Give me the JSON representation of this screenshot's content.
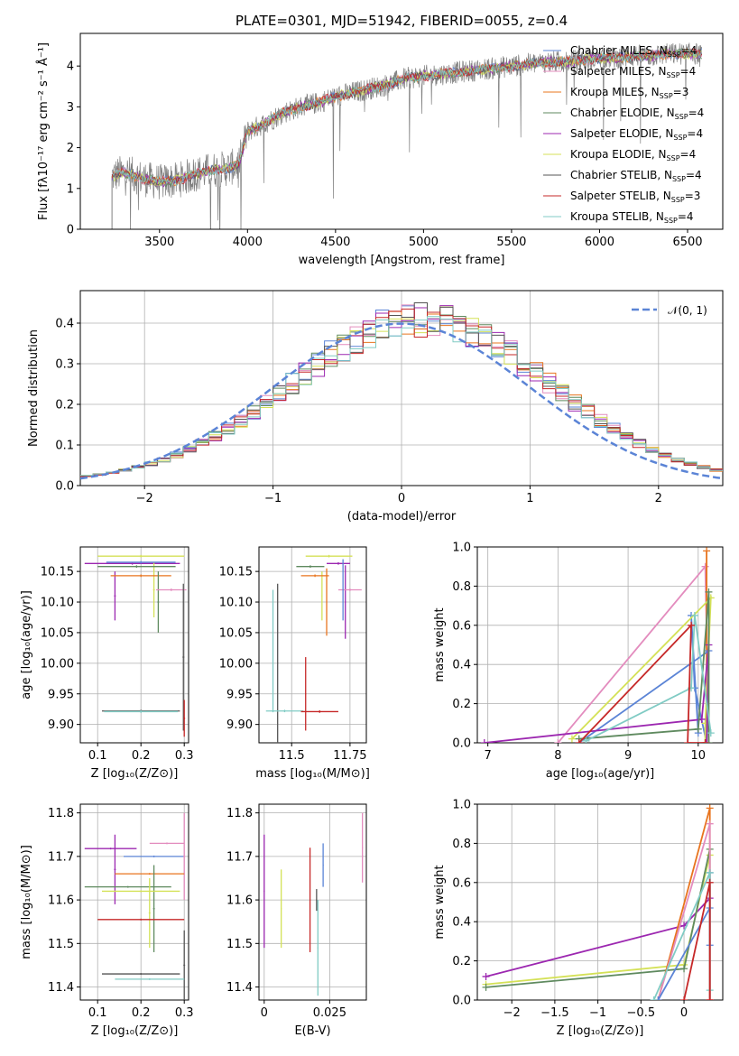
{
  "chart_data": [
    {
      "type": "line",
      "id": "spectrum",
      "title": "PLATE=0301, MJD=51942, FIBERID=0055, z=0.4",
      "xlabel": "wavelength [Angstrom, rest frame]",
      "ylabel": "Flux [fλ10⁻¹⁷ erg cm⁻² s⁻¹ Å⁻¹]",
      "xlim": [
        3050,
        6700
      ],
      "ylim": [
        0,
        4.8
      ],
      "xticks": [
        3500,
        4000,
        4500,
        5000,
        5500,
        6000,
        6500
      ],
      "yticks": [
        0,
        1,
        2,
        3,
        4
      ],
      "legend_position": "upper-right",
      "data_color": "#808080",
      "continuum": {
        "x": [
          3230,
          3300,
          3400,
          3500,
          3600,
          3700,
          3800,
          3900,
          3950,
          4000,
          4100,
          4200,
          4300,
          4400,
          4500,
          4600,
          4700,
          4800,
          4900,
          5000,
          5100,
          5200,
          5300,
          5400,
          5500,
          5600,
          5700,
          5800,
          5900,
          6000,
          6100,
          6200,
          6300,
          6400,
          6500,
          6580
        ],
        "y": [
          1.3,
          1.4,
          1.25,
          1.15,
          1.2,
          1.35,
          1.45,
          1.5,
          1.6,
          2.4,
          2.6,
          2.85,
          3.0,
          3.1,
          3.25,
          3.35,
          3.45,
          3.55,
          3.7,
          3.75,
          3.8,
          3.85,
          3.9,
          3.95,
          4.0,
          4.05,
          4.1,
          4.1,
          4.15,
          4.2,
          4.2,
          4.25,
          4.25,
          4.3,
          4.3,
          4.3
        ]
      },
      "legend": [
        {
          "label": "Chabrier MILES, N",
          "sub": "SSP",
          "suffix": "=4",
          "color": "#5b84d6"
        },
        {
          "label": "Salpeter MILES, N",
          "sub": "SSP",
          "suffix": "=4",
          "color": "#e38cbe"
        },
        {
          "label": "Kroupa MILES, N",
          "sub": "SSP",
          "suffix": "=3",
          "color": "#e8741e"
        },
        {
          "label": "Chabrier ELODIE, N",
          "sub": "SSP",
          "suffix": "=4",
          "color": "#5f8a5f"
        },
        {
          "label": "Salpeter ELODIE, N",
          "sub": "SSP",
          "suffix": "=4",
          "color": "#9c27b0"
        },
        {
          "label": "Kroupa ELODIE, N",
          "sub": "SSP",
          "suffix": "=4",
          "color": "#d4e157"
        },
        {
          "label": "Chabrier STELIB, N",
          "sub": "SSP",
          "suffix": "=4",
          "color": "#555555"
        },
        {
          "label": "Salpeter STELIB, N",
          "sub": "SSP",
          "suffix": "=3",
          "color": "#c62828"
        },
        {
          "label": "Kroupa STELIB, N",
          "sub": "SSP",
          "suffix": "=4",
          "color": "#80cbc4"
        }
      ]
    },
    {
      "type": "histogram",
      "id": "residuals",
      "xlabel": "(data-model)/error",
      "ylabel": "Normed distribution",
      "xlim": [
        -2.5,
        2.5
      ],
      "ylim": [
        0,
        0.48
      ],
      "xticks": [
        -2,
        -1,
        0,
        1,
        2
      ],
      "yticks": [
        0.0,
        0.1,
        0.2,
        0.3,
        0.4
      ],
      "grid": true,
      "legend_position": "upper-right",
      "normal_curve": {
        "label": "𝒩(0, 1)",
        "color": "#5b84d6"
      },
      "bin_edges_start": -2.5,
      "bin_width": 0.1,
      "series_colors": [
        "#5b84d6",
        "#e38cbe",
        "#e8741e",
        "#5f8a5f",
        "#9c27b0",
        "#d4e157",
        "#555555",
        "#c62828",
        "#80cbc4"
      ]
    },
    {
      "type": "scatter",
      "id": "age-vs-Z",
      "xlabel": "Z [log₁₀(Z/Z⊙)]",
      "ylabel": "age  [log₁₀(age/yr)]",
      "xlim": [
        0.06,
        0.31
      ],
      "ylim": [
        9.87,
        10.19
      ],
      "xticks": [
        0.1,
        0.2,
        0.3
      ],
      "yticks": [
        9.9,
        9.95,
        10.0,
        10.05,
        10.1,
        10.15
      ],
      "points": [
        {
          "x": 0.18,
          "y": 10.163,
          "xerr": 0.11,
          "yerr": 0.002,
          "color": "#9c27b0"
        },
        {
          "x": 0.14,
          "y": 10.11,
          "xerr": 0.002,
          "yerr": 0.04,
          "color": "#9c27b0"
        },
        {
          "x": 0.2,
          "y": 10.175,
          "xerr": 0.1,
          "yerr": 0.002,
          "color": "#d4e157"
        },
        {
          "x": 0.23,
          "y": 10.12,
          "xerr": 0.002,
          "yerr": 0.045,
          "color": "#d4e157"
        },
        {
          "x": 0.2,
          "y": 10.143,
          "xerr": 0.07,
          "yerr": 0.002,
          "color": "#e8741e"
        },
        {
          "x": 0.19,
          "y": 10.158,
          "xerr": 0.09,
          "yerr": 0.002,
          "color": "#5f8a5f"
        },
        {
          "x": 0.24,
          "y": 10.1,
          "xerr": 0.002,
          "yerr": 0.05,
          "color": "#5f8a5f"
        },
        {
          "x": 0.27,
          "y": 10.12,
          "xerr": 0.035,
          "yerr": 0.002,
          "color": "#e38cbe"
        },
        {
          "x": 0.2,
          "y": 10.165,
          "xerr": 0.08,
          "yerr": 0.002,
          "color": "#5b84d6"
        },
        {
          "x": 0.298,
          "y": 10.01,
          "xerr": 0.002,
          "yerr": 0.12,
          "color": "#555555"
        },
        {
          "x": 0.2,
          "y": 9.922,
          "xerr": 0.09,
          "yerr": 0.002,
          "color": "#555555"
        },
        {
          "x": 0.2,
          "y": 9.921,
          "xerr": 0.085,
          "yerr": 0.002,
          "color": "#80cbc4"
        },
        {
          "x": 0.3,
          "y": 9.91,
          "xerr": 0.002,
          "yerr": 0.03,
          "color": "#c62828"
        }
      ]
    },
    {
      "type": "scatter",
      "id": "age-vs-mass",
      "xlabel": "mass [log₁₀(M/M⊙)]",
      "xlim": [
        11.36,
        11.82
      ],
      "ylim": [
        9.87,
        10.19
      ],
      "xticks": [
        11.5,
        11.75
      ],
      "yticks": [
        9.9,
        9.95,
        10.0,
        10.05,
        10.1,
        10.15
      ],
      "points": [
        {
          "x": 11.66,
          "y": 10.175,
          "xerr": 0.1,
          "yerr": 0.002,
          "color": "#d4e157"
        },
        {
          "x": 11.63,
          "y": 10.11,
          "xerr": 0.002,
          "yerr": 0.04,
          "color": "#d4e157"
        },
        {
          "x": 11.6,
          "y": 10.143,
          "xerr": 0.06,
          "yerr": 0.002,
          "color": "#e8741e"
        },
        {
          "x": 11.65,
          "y": 10.1,
          "xerr": 0.002,
          "yerr": 0.055,
          "color": "#e8741e"
        },
        {
          "x": 11.58,
          "y": 10.158,
          "xerr": 0.06,
          "yerr": 0.002,
          "color": "#5f8a5f"
        },
        {
          "x": 11.7,
          "y": 10.163,
          "xerr": 0.05,
          "yerr": 0.002,
          "color": "#9c27b0"
        },
        {
          "x": 11.73,
          "y": 10.1,
          "xerr": 0.002,
          "yerr": 0.06,
          "color": "#9c27b0"
        },
        {
          "x": 11.75,
          "y": 10.12,
          "xerr": 0.05,
          "yerr": 0.002,
          "color": "#e38cbe"
        },
        {
          "x": 11.72,
          "y": 10.12,
          "xerr": 0.002,
          "yerr": 0.05,
          "color": "#5b84d6"
        },
        {
          "x": 11.42,
          "y": 10.02,
          "xerr": 0.002,
          "yerr": 0.1,
          "color": "#80cbc4"
        },
        {
          "x": 11.44,
          "y": 10.0,
          "xerr": 0.002,
          "yerr": 0.13,
          "color": "#555555"
        },
        {
          "x": 11.47,
          "y": 9.922,
          "xerr": 0.08,
          "yerr": 0.002,
          "color": "#80cbc4"
        },
        {
          "x": 11.62,
          "y": 9.921,
          "xerr": 0.08,
          "yerr": 0.002,
          "color": "#c62828"
        },
        {
          "x": 11.56,
          "y": 9.95,
          "xerr": 0.002,
          "yerr": 0.06,
          "color": "#c62828"
        }
      ]
    },
    {
      "type": "line",
      "id": "weight-vs-age",
      "xlabel": "age  [log₁₀(age/yr)]",
      "ylabel": "mass weight",
      "xlim": [
        6.85,
        10.35
      ],
      "ylim": [
        0,
        1.0
      ],
      "xticks": [
        7,
        8,
        9,
        10
      ],
      "yticks": [
        0.0,
        0.2,
        0.4,
        0.6,
        0.8,
        1.0
      ],
      "grid": true,
      "series": [
        {
          "color": "#e38cbe",
          "x": [
            8.0,
            10.1,
            10.15
          ],
          "y": [
            0.0,
            0.9,
            0.0
          ]
        },
        {
          "color": "#e8741e",
          "x": [
            10.12,
            10.12,
            10.12
          ],
          "y": [
            0.0,
            0.98,
            0.0
          ]
        },
        {
          "color": "#5b84d6",
          "x": [
            8.3,
            10.15,
            10.12,
            9.95,
            9.9,
            10.0
          ],
          "y": [
            0.0,
            0.47,
            0.0,
            0.28,
            0.65,
            0.05
          ]
        },
        {
          "color": "#d4e157",
          "x": [
            8.2,
            10.18,
            10.1,
            10.1
          ],
          "y": [
            0.02,
            0.74,
            0.1,
            0.0
          ]
        },
        {
          "color": "#9c27b0",
          "x": [
            6.95,
            10.05,
            10.15,
            10.12
          ],
          "y": [
            0.0,
            0.12,
            0.5,
            0.0
          ]
        },
        {
          "color": "#5f8a5f",
          "x": [
            8.3,
            10.0,
            10.15,
            10.15
          ],
          "y": [
            0.02,
            0.07,
            0.77,
            0.0
          ]
        },
        {
          "color": "#80cbc4",
          "x": [
            8.4,
            9.9,
            9.95,
            10.18
          ],
          "y": [
            0.01,
            0.28,
            0.65,
            0.05
          ]
        },
        {
          "color": "#c62828",
          "x": [
            8.3,
            9.9,
            9.85,
            10.1
          ],
          "y": [
            0.0,
            0.6,
            0.0,
            0.0
          ]
        }
      ]
    },
    {
      "type": "scatter",
      "id": "mass-vs-Z",
      "xlabel": "Z [log₁₀(Z/Z⊙)]",
      "ylabel": "mass [log₁₀(M/M⊙)]",
      "xlim": [
        0.06,
        0.31
      ],
      "ylim": [
        11.37,
        11.82
      ],
      "xticks": [
        0.1,
        0.2,
        0.3
      ],
      "yticks": [
        11.4,
        11.5,
        11.6,
        11.7,
        11.8
      ],
      "points": [
        {
          "x": 0.13,
          "y": 11.718,
          "xerr": 0.06,
          "yerr": 0.002,
          "color": "#9c27b0"
        },
        {
          "x": 0.14,
          "y": 11.67,
          "xerr": 0.002,
          "yerr": 0.08,
          "color": "#9c27b0"
        },
        {
          "x": 0.23,
          "y": 11.7,
          "xerr": 0.07,
          "yerr": 0.002,
          "color": "#5b84d6"
        },
        {
          "x": 0.26,
          "y": 11.73,
          "xerr": 0.04,
          "yerr": 0.002,
          "color": "#e38cbe"
        },
        {
          "x": 0.3,
          "y": 11.7,
          "xerr": 0.002,
          "yerr": 0.1,
          "color": "#e38cbe"
        },
        {
          "x": 0.22,
          "y": 11.66,
          "xerr": 0.08,
          "yerr": 0.002,
          "color": "#e8741e"
        },
        {
          "x": 0.17,
          "y": 11.63,
          "xerr": 0.1,
          "yerr": 0.002,
          "color": "#5f8a5f"
        },
        {
          "x": 0.23,
          "y": 11.58,
          "xerr": 0.002,
          "yerr": 0.1,
          "color": "#5f8a5f"
        },
        {
          "x": 0.2,
          "y": 11.62,
          "xerr": 0.09,
          "yerr": 0.002,
          "color": "#d4e157"
        },
        {
          "x": 0.22,
          "y": 11.57,
          "xerr": 0.002,
          "yerr": 0.08,
          "color": "#d4e157"
        },
        {
          "x": 0.2,
          "y": 11.555,
          "xerr": 0.1,
          "yerr": 0.002,
          "color": "#c62828"
        },
        {
          "x": 0.2,
          "y": 11.43,
          "xerr": 0.09,
          "yerr": 0.002,
          "color": "#555555"
        },
        {
          "x": 0.3,
          "y": 11.45,
          "xerr": 0.002,
          "yerr": 0.08,
          "color": "#555555"
        },
        {
          "x": 0.22,
          "y": 11.418,
          "xerr": 0.08,
          "yerr": 0.002,
          "color": "#80cbc4"
        }
      ]
    },
    {
      "type": "scatter",
      "id": "mass-vs-EBV",
      "xlabel": "E(B-V)",
      "xlim": [
        -0.002,
        0.039
      ],
      "ylim": [
        11.37,
        11.82
      ],
      "xticks": [
        0.0,
        0.025
      ],
      "yticks": [
        11.4,
        11.5,
        11.6,
        11.7,
        11.8
      ],
      "points": [
        {
          "x": 0.0,
          "y": 11.62,
          "xerr": 0.0002,
          "yerr": 0.13,
          "color": "#9c27b0"
        },
        {
          "x": 0.0065,
          "y": 11.58,
          "xerr": 0.0002,
          "yerr": 0.09,
          "color": "#d4e157"
        },
        {
          "x": 0.0175,
          "y": 11.6,
          "xerr": 0.0002,
          "yerr": 0.12,
          "color": "#c62828"
        },
        {
          "x": 0.02,
          "y": 11.6,
          "xerr": 0.0002,
          "yerr": 0.025,
          "color": "#555555"
        },
        {
          "x": 0.0205,
          "y": 11.49,
          "xerr": 0.0002,
          "yerr": 0.11,
          "color": "#80cbc4"
        },
        {
          "x": 0.0225,
          "y": 11.68,
          "xerr": 0.0002,
          "yerr": 0.05,
          "color": "#5b84d6"
        },
        {
          "x": 0.0375,
          "y": 11.72,
          "xerr": 0.0002,
          "yerr": 0.08,
          "color": "#e38cbe"
        }
      ]
    },
    {
      "type": "line",
      "id": "weight-vs-Z",
      "xlabel": "Z [log₁₀(Z/Z⊙)]",
      "ylabel": "mass weight",
      "xlim": [
        -2.4,
        0.45
      ],
      "ylim": [
        0,
        1.0
      ],
      "xticks": [
        -2.0,
        -1.5,
        -1.0,
        -0.5,
        0.0
      ],
      "yticks": [
        0.0,
        0.2,
        0.4,
        0.6,
        0.8,
        1.0
      ],
      "grid": true,
      "series": [
        {
          "color": "#9c27b0",
          "x": [
            -2.3,
            0.0,
            0.3,
            0.3
          ],
          "y": [
            0.12,
            0.38,
            0.52,
            0.0
          ]
        },
        {
          "color": "#d4e157",
          "x": [
            -2.3,
            0.0,
            0.3
          ],
          "y": [
            0.08,
            0.18,
            0.74
          ]
        },
        {
          "color": "#5f8a5f",
          "x": [
            -2.3,
            0.0,
            0.3,
            0.3
          ],
          "y": [
            0.065,
            0.16,
            0.77,
            0.0
          ]
        },
        {
          "color": "#e8741e",
          "x": [
            -0.3,
            0.3,
            0.3
          ],
          "y": [
            0.0,
            0.98,
            0.0
          ]
        },
        {
          "color": "#e38cbe",
          "x": [
            -0.3,
            0.3,
            0.3
          ],
          "y": [
            0.0,
            0.9,
            0.0
          ]
        },
        {
          "color": "#5b84d6",
          "x": [
            -0.3,
            0.3,
            0.3,
            0.3
          ],
          "y": [
            0.0,
            0.47,
            0.65,
            0.28
          ]
        },
        {
          "color": "#80cbc4",
          "x": [
            -0.35,
            0.3,
            0.3
          ],
          "y": [
            0.0,
            0.65,
            0.05
          ]
        },
        {
          "color": "#c62828",
          "x": [
            0.0,
            0.3,
            0.3
          ],
          "y": [
            0.0,
            0.6,
            0.0
          ]
        }
      ]
    }
  ]
}
